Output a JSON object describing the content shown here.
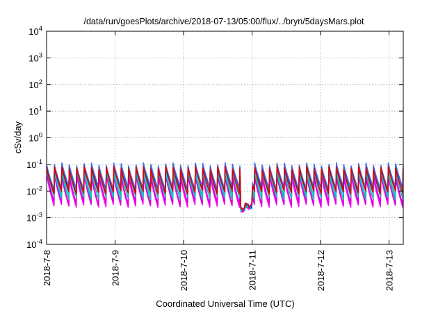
{
  "chart_data": {
    "type": "line",
    "title": "/data/run/goesPlots/archive/2018-07-13/05:00/flux/../bryn/5daysMars.plot",
    "xlabel": "Coordinated Universal Time (UTC)",
    "ylabel": "cSv/day",
    "y_scale": "log",
    "ylim": [
      0.0001,
      10000
    ],
    "y_ticks": [
      {
        "value": 0.0001,
        "base": "10",
        "exp": "-4"
      },
      {
        "value": 0.001,
        "base": "10",
        "exp": "-3"
      },
      {
        "value": 0.01,
        "base": "10",
        "exp": "-2"
      },
      {
        "value": 0.1,
        "base": "10",
        "exp": "-1"
      },
      {
        "value": 1,
        "base": "10",
        "exp": "0"
      },
      {
        "value": 10,
        "base": "10",
        "exp": "1"
      },
      {
        "value": 100,
        "base": "10",
        "exp": "2"
      },
      {
        "value": 1000,
        "base": "10",
        "exp": "3"
      },
      {
        "value": 10000,
        "base": "10",
        "exp": "4"
      }
    ],
    "xlim": [
      "2018-07-08 00:00",
      "2018-07-13 05:00"
    ],
    "x_ticks": [
      "2018-7-8",
      "2018-7-9",
      "2018-7-10",
      "2018-7-11",
      "2018-7-12",
      "2018-7-13"
    ],
    "grid": true,
    "spike_period_hours": 2.6,
    "series": [
      {
        "color": "#ff00ff",
        "peak": 0.035,
        "trough": 0.0028
      },
      {
        "color": "#d600d6",
        "peak": 0.042,
        "trough": 0.0035
      },
      {
        "color": "#1fb3b3",
        "peak": 0.055,
        "trough": 0.0055
      },
      {
        "color": "#00cccc",
        "peak": 0.065,
        "trough": 0.0075
      },
      {
        "color": "#2222cc",
        "peak": 0.085,
        "trough": 0.011
      },
      {
        "color": "#3a6ee8",
        "peak": 0.1,
        "trough": 0.013
      },
      {
        "color": "#dd0000",
        "peak": 0.075,
        "trough": 0.009
      }
    ],
    "anomaly": {
      "start": "2018-07-10 20:00",
      "end": "2018-07-11 00:00",
      "values": [
        0.0018,
        0.0025,
        0.0022
      ]
    }
  }
}
